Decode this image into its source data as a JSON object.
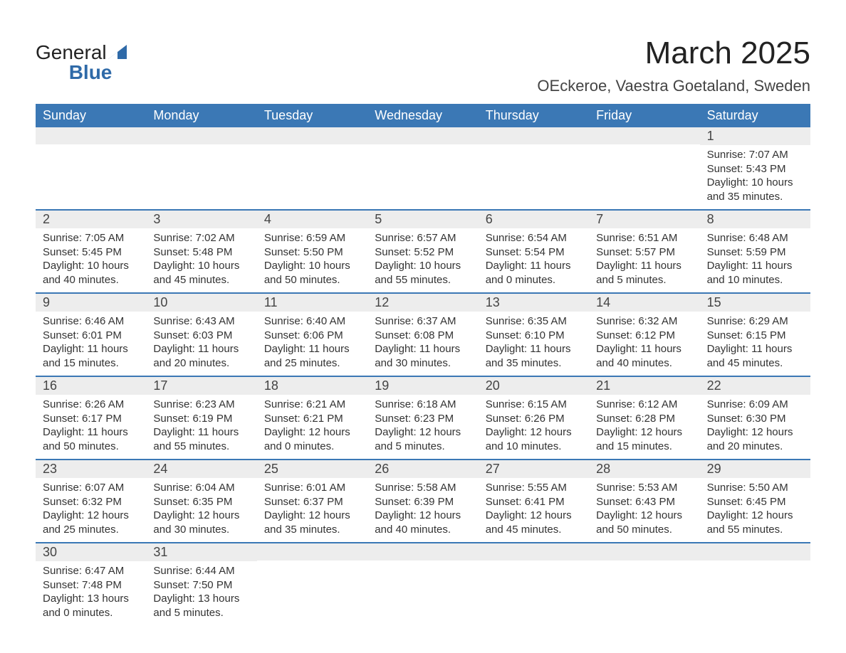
{
  "brand": {
    "name_a": "General",
    "name_b": "Blue"
  },
  "header": {
    "title": "March 2025",
    "location": "OEckeroe, Vaestra Goetaland, Sweden"
  },
  "styling": {
    "header_bg": "#3b78b5",
    "header_fg": "#ffffff",
    "daynum_bg": "#ededed",
    "border_color": "#3b78b5",
    "body_bg": "#ffffff",
    "text_color": "#333333",
    "title_fontsize": 44,
    "location_fontsize": 22,
    "weekday_fontsize": 18,
    "daynum_fontsize": 18,
    "cell_fontsize": 15
  },
  "weekdays": [
    "Sunday",
    "Monday",
    "Tuesday",
    "Wednesday",
    "Thursday",
    "Friday",
    "Saturday"
  ],
  "weeks": [
    [
      {
        "blank": true
      },
      {
        "blank": true
      },
      {
        "blank": true
      },
      {
        "blank": true
      },
      {
        "blank": true
      },
      {
        "blank": true
      },
      {
        "n": "1",
        "sunrise": "7:07 AM",
        "sunset": "5:43 PM",
        "dh": "10",
        "dm": "35"
      }
    ],
    [
      {
        "n": "2",
        "sunrise": "7:05 AM",
        "sunset": "5:45 PM",
        "dh": "10",
        "dm": "40"
      },
      {
        "n": "3",
        "sunrise": "7:02 AM",
        "sunset": "5:48 PM",
        "dh": "10",
        "dm": "45"
      },
      {
        "n": "4",
        "sunrise": "6:59 AM",
        "sunset": "5:50 PM",
        "dh": "10",
        "dm": "50"
      },
      {
        "n": "5",
        "sunrise": "6:57 AM",
        "sunset": "5:52 PM",
        "dh": "10",
        "dm": "55"
      },
      {
        "n": "6",
        "sunrise": "6:54 AM",
        "sunset": "5:54 PM",
        "dh": "11",
        "dm": "0"
      },
      {
        "n": "7",
        "sunrise": "6:51 AM",
        "sunset": "5:57 PM",
        "dh": "11",
        "dm": "5"
      },
      {
        "n": "8",
        "sunrise": "6:48 AM",
        "sunset": "5:59 PM",
        "dh": "11",
        "dm": "10"
      }
    ],
    [
      {
        "n": "9",
        "sunrise": "6:46 AM",
        "sunset": "6:01 PM",
        "dh": "11",
        "dm": "15"
      },
      {
        "n": "10",
        "sunrise": "6:43 AM",
        "sunset": "6:03 PM",
        "dh": "11",
        "dm": "20"
      },
      {
        "n": "11",
        "sunrise": "6:40 AM",
        "sunset": "6:06 PM",
        "dh": "11",
        "dm": "25"
      },
      {
        "n": "12",
        "sunrise": "6:37 AM",
        "sunset": "6:08 PM",
        "dh": "11",
        "dm": "30"
      },
      {
        "n": "13",
        "sunrise": "6:35 AM",
        "sunset": "6:10 PM",
        "dh": "11",
        "dm": "35"
      },
      {
        "n": "14",
        "sunrise": "6:32 AM",
        "sunset": "6:12 PM",
        "dh": "11",
        "dm": "40"
      },
      {
        "n": "15",
        "sunrise": "6:29 AM",
        "sunset": "6:15 PM",
        "dh": "11",
        "dm": "45"
      }
    ],
    [
      {
        "n": "16",
        "sunrise": "6:26 AM",
        "sunset": "6:17 PM",
        "dh": "11",
        "dm": "50"
      },
      {
        "n": "17",
        "sunrise": "6:23 AM",
        "sunset": "6:19 PM",
        "dh": "11",
        "dm": "55"
      },
      {
        "n": "18",
        "sunrise": "6:21 AM",
        "sunset": "6:21 PM",
        "dh": "12",
        "dm": "0"
      },
      {
        "n": "19",
        "sunrise": "6:18 AM",
        "sunset": "6:23 PM",
        "dh": "12",
        "dm": "5"
      },
      {
        "n": "20",
        "sunrise": "6:15 AM",
        "sunset": "6:26 PM",
        "dh": "12",
        "dm": "10"
      },
      {
        "n": "21",
        "sunrise": "6:12 AM",
        "sunset": "6:28 PM",
        "dh": "12",
        "dm": "15"
      },
      {
        "n": "22",
        "sunrise": "6:09 AM",
        "sunset": "6:30 PM",
        "dh": "12",
        "dm": "20"
      }
    ],
    [
      {
        "n": "23",
        "sunrise": "6:07 AM",
        "sunset": "6:32 PM",
        "dh": "12",
        "dm": "25"
      },
      {
        "n": "24",
        "sunrise": "6:04 AM",
        "sunset": "6:35 PM",
        "dh": "12",
        "dm": "30"
      },
      {
        "n": "25",
        "sunrise": "6:01 AM",
        "sunset": "6:37 PM",
        "dh": "12",
        "dm": "35"
      },
      {
        "n": "26",
        "sunrise": "5:58 AM",
        "sunset": "6:39 PM",
        "dh": "12",
        "dm": "40"
      },
      {
        "n": "27",
        "sunrise": "5:55 AM",
        "sunset": "6:41 PM",
        "dh": "12",
        "dm": "45"
      },
      {
        "n": "28",
        "sunrise": "5:53 AM",
        "sunset": "6:43 PM",
        "dh": "12",
        "dm": "50"
      },
      {
        "n": "29",
        "sunrise": "5:50 AM",
        "sunset": "6:45 PM",
        "dh": "12",
        "dm": "55"
      }
    ],
    [
      {
        "n": "30",
        "sunrise": "6:47 AM",
        "sunset": "7:48 PM",
        "dh": "13",
        "dm": "0"
      },
      {
        "n": "31",
        "sunrise": "6:44 AM",
        "sunset": "7:50 PM",
        "dh": "13",
        "dm": "5"
      },
      {
        "blank": true
      },
      {
        "blank": true
      },
      {
        "blank": true
      },
      {
        "blank": true
      },
      {
        "blank": true
      }
    ]
  ],
  "labels": {
    "sunrise": "Sunrise:",
    "sunset": "Sunset:",
    "daylight_a": "Daylight:",
    "hours_word": "hours",
    "and_word": "and",
    "minutes_word": "minutes."
  }
}
